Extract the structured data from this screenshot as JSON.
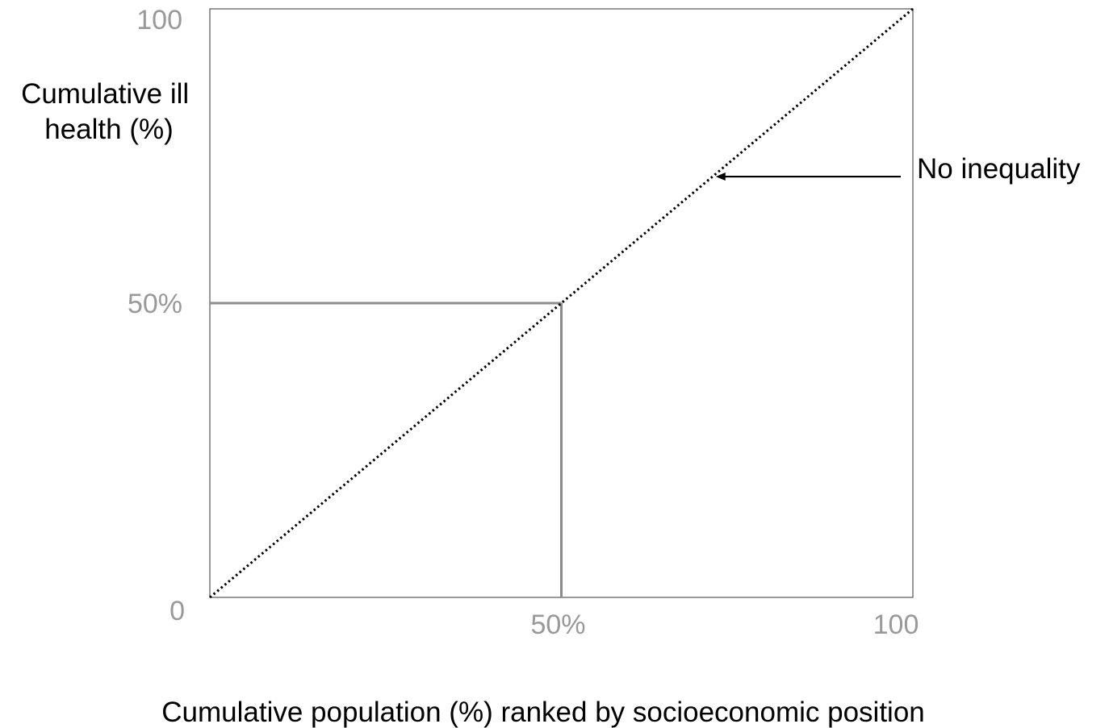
{
  "chart_data": {
    "type": "line",
    "title": "",
    "xlabel": "Cumulative population (%) ranked by socioeconomic position",
    "ylabel_lines": [
      "Cumulative ill",
      "health (%)"
    ],
    "xlim": [
      0,
      100
    ],
    "ylim": [
      0,
      100
    ],
    "grid": false,
    "x_ticks": [
      {
        "value": 50,
        "label": "50%"
      },
      {
        "value": 100,
        "label": "100"
      }
    ],
    "y_ticks": [
      {
        "value": 0,
        "label": "0"
      },
      {
        "value": 50,
        "label": "50%"
      },
      {
        "value": 100,
        "label": "100"
      }
    ],
    "series": [
      {
        "name": "No inequality",
        "style": "dotted",
        "color": "#000000",
        "x": [
          0,
          100
        ],
        "y": [
          0,
          100
        ]
      }
    ],
    "reference_lines": [
      {
        "orientation": "horizontal",
        "value": 50,
        "from": 0,
        "to": 50,
        "color": "#8c8c8c"
      },
      {
        "orientation": "vertical",
        "value": 50,
        "from": 0,
        "to": 50,
        "color": "#8c8c8c"
      }
    ],
    "annotations": [
      {
        "text": "No inequality",
        "points_to_x": 71.5,
        "points_to_y": 71.5
      }
    ],
    "colors": {
      "frame": "#555555",
      "tick_text": "#999999",
      "reference": "#8c8c8c",
      "diagonal": "#000000"
    }
  }
}
